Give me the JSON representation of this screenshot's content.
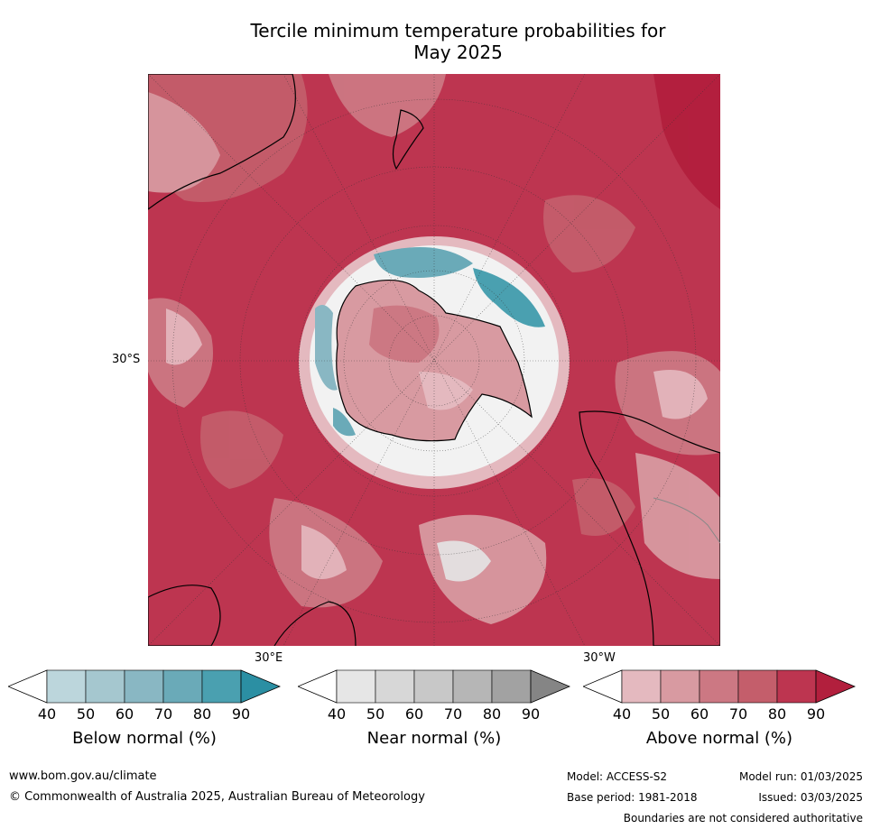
{
  "title_line1": "Tercile minimum temperature probabilities for",
  "title_line2": "May 2025",
  "map": {
    "lat_label": "30°S",
    "lon_label_east": "30°E",
    "lon_label_west": "30°W"
  },
  "colorbars": [
    {
      "title": "Below normal (%)",
      "ticks": [
        "40",
        "50",
        "60",
        "70",
        "80",
        "90"
      ],
      "colors": [
        "#bcd6dc",
        "#a5c7cf",
        "#89b7c3",
        "#6aaab8",
        "#4aa0b0",
        "#2b8fa3"
      ]
    },
    {
      "title": "Near normal (%)",
      "ticks": [
        "40",
        "50",
        "60",
        "70",
        "80",
        "90"
      ],
      "colors": [
        "#e6e6e6",
        "#d7d7d7",
        "#c8c8c8",
        "#b6b6b6",
        "#a2a2a2",
        "#858585"
      ]
    },
    {
      "title": "Above normal (%)",
      "ticks": [
        "40",
        "50",
        "60",
        "70",
        "80",
        "90"
      ],
      "colors": [
        "#e4b9bf",
        "#d89aa1",
        "#cc7883",
        "#c45e6b",
        "#bd3550",
        "#b21f3d"
      ]
    }
  ],
  "footer": {
    "url": "www.bom.gov.au/climate",
    "copyright": "© Commonwealth of Australia 2025, Australian Bureau of Meteorology",
    "model": "Model: ACCESS-S2",
    "model_run": "Model run: 01/03/2025",
    "base_period": "Base period: 1981-2018",
    "issued": "Issued: 03/03/2025",
    "disclaimer": "Boundaries are not considered authoritative"
  },
  "colors": {
    "above_strong": "#b21f3d",
    "above_mid": "#c45e6b",
    "above_light": "#e4b9bf",
    "below_mid": "#6aaab8",
    "near_light": "#e6e6e6"
  }
}
